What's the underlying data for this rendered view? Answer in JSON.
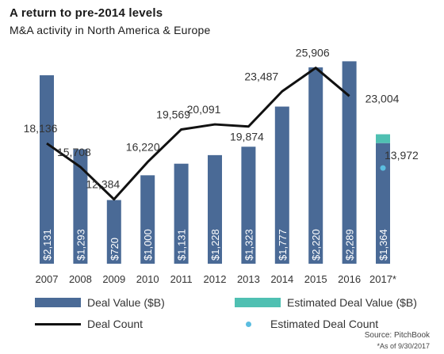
{
  "header": {
    "title": "A return to pre-2014 levels",
    "subtitle": "M&A activity in North America & Europe"
  },
  "colors": {
    "bar": "#4a6a96",
    "estimated_bar": "#4fc0b2",
    "line": "#111111",
    "estimated_dot": "#5bbde0",
    "text": "#333333"
  },
  "legend": {
    "deal_value": "Deal Value ($B)",
    "estimated_deal_value": "Estimated Deal Value ($B)",
    "deal_count": "Deal Count",
    "estimated_deal_count": "Estimated Deal Count"
  },
  "footer": {
    "source": "Source: PitchBook",
    "note": "*As of 9/30/2017"
  },
  "chart_data": {
    "type": "bar",
    "title": "A return to pre-2014 levels",
    "subtitle": "M&A activity in North America & Europe",
    "categories": [
      "2007",
      "2008",
      "2009",
      "2010",
      "2011",
      "2012",
      "2013",
      "2014",
      "2015",
      "2016",
      "2017*"
    ],
    "series": [
      {
        "name": "Deal Value ($B)",
        "type": "bar",
        "values": [
          2131,
          1293,
          720,
          1000,
          1131,
          1228,
          1323,
          1777,
          2220,
          2289,
          1364
        ],
        "labels": [
          "$2,131",
          "$1,293",
          "$720",
          "$1,000",
          "$1,131",
          "$1,228",
          "$1,323",
          "$1,777",
          "$2,220",
          "$2,289",
          "$1,364"
        ]
      },
      {
        "name": "Estimated Deal Value ($B)",
        "type": "bar",
        "stacked_on": "Deal Value ($B)",
        "values": [
          null,
          null,
          null,
          null,
          null,
          null,
          null,
          null,
          null,
          null,
          100
        ]
      },
      {
        "name": "Deal Count",
        "type": "line",
        "values": [
          18136,
          15708,
          12384,
          16220,
          19569,
          20091,
          19874,
          23487,
          25906,
          23004,
          null
        ],
        "labels": [
          "18,136",
          "15,708",
          "12,384",
          "16,220",
          "19,569",
          "20,091",
          "19,874",
          "23,487",
          "25,906",
          "23,004",
          ""
        ]
      },
      {
        "name": "Estimated Deal Count",
        "type": "scatter",
        "values": [
          null,
          null,
          null,
          null,
          null,
          null,
          null,
          null,
          null,
          null,
          13972
        ],
        "labels": [
          "",
          "",
          "",
          "",
          "",
          "",
          "",
          "",
          "",
          "",
          "13,972"
        ]
      }
    ],
    "y_bar_range": [
      0,
      2400
    ],
    "y_line_range": [
      6000,
      28000
    ],
    "grid": false,
    "legend_position": "bottom"
  }
}
